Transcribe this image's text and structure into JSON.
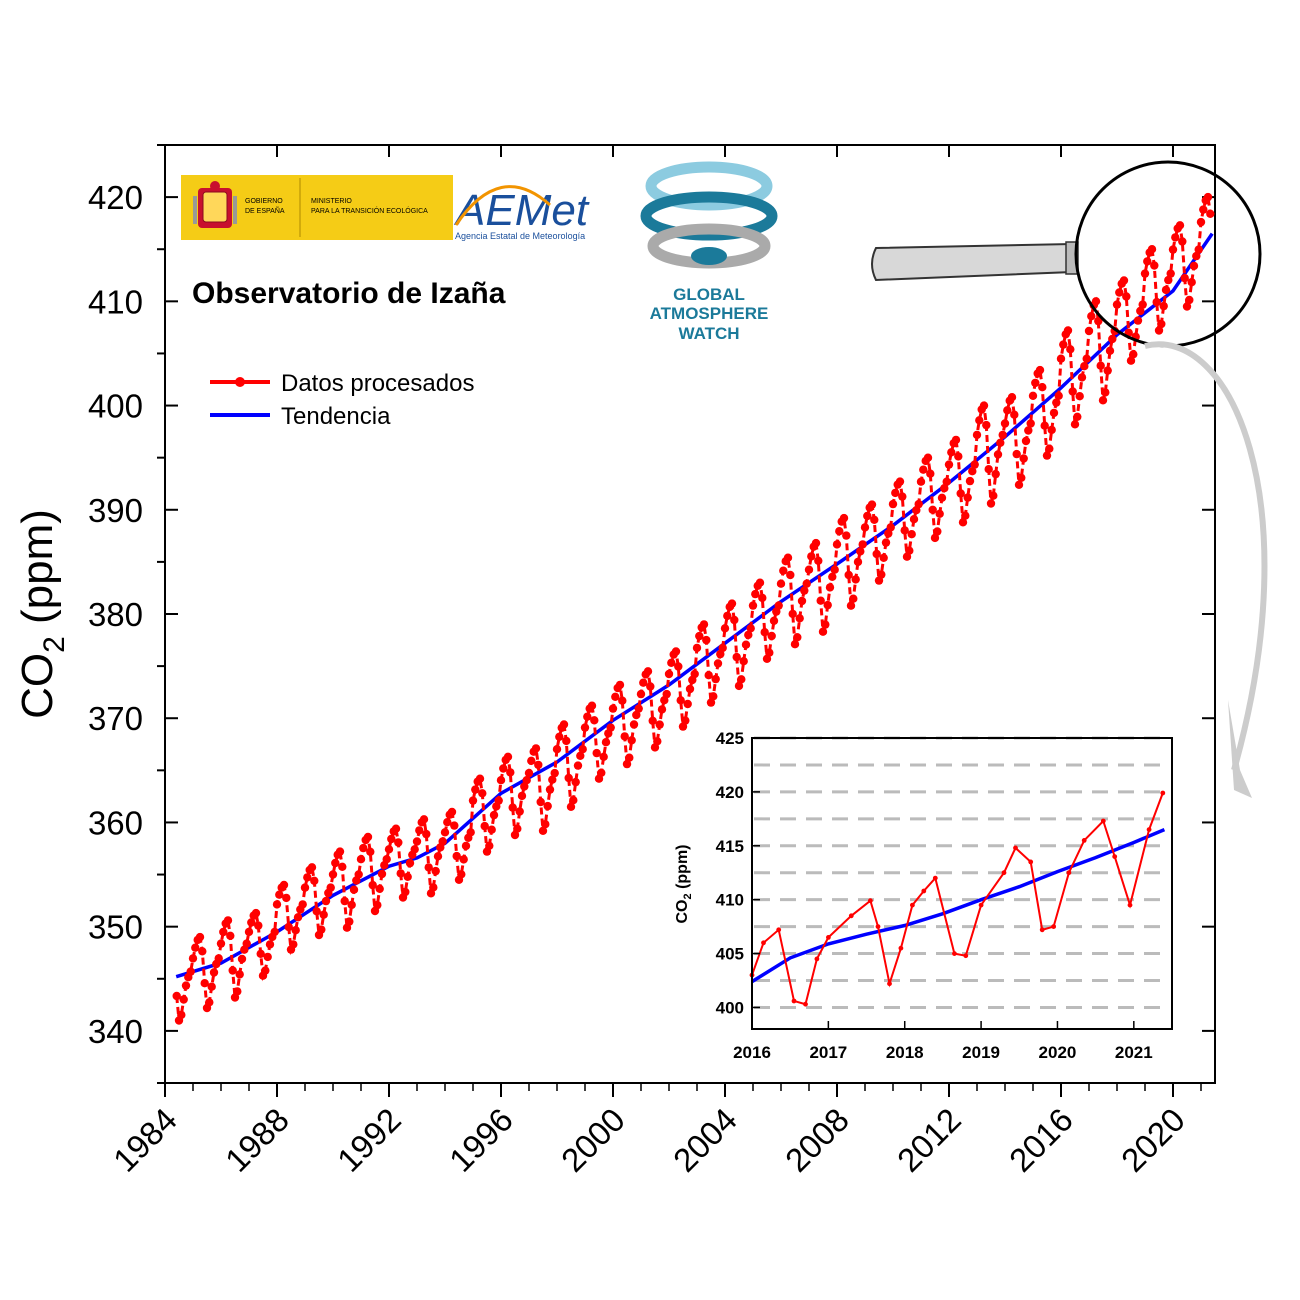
{
  "colors": {
    "processed": "#ff0000",
    "trend": "#0000ff",
    "axis": "#000000",
    "grid_inset": "#bbbbbb",
    "spain_gold": "#f5cc16",
    "aemet_blue": "#1a4f9c",
    "aemet_orange": "#f29400",
    "gaw_teal": "#1b7a9a",
    "gaw_light": "#8ccbe0"
  },
  "logos": {
    "spain": {
      "gobierno": [
        "GOBIERNO",
        "DE ESPAÑA"
      ],
      "ministerio": [
        "MINISTERIO",
        "PARA LA TRANSICIÓN ECOLÓGICA"
      ]
    },
    "aemet": {
      "name": "AEMet",
      "subtitle": "Agencia Estatal de Meteorología"
    },
    "gaw": {
      "lines": [
        "GLOBAL",
        "ATMOSPHERE",
        "WATCH"
      ]
    }
  },
  "chart_data": [
    {
      "type": "line",
      "title": "Observatorio de Izaña",
      "ylabel_main": "CO",
      "ylabel_sub": "2",
      "ylabel_unit": "(ppm)",
      "xlim": [
        1984,
        2021.5
      ],
      "ylim": [
        335,
        425
      ],
      "x_ticks": [
        1984,
        1988,
        1992,
        1996,
        2000,
        2004,
        2008,
        2012,
        2016,
        2020
      ],
      "y_ticks": [
        340,
        350,
        360,
        370,
        380,
        390,
        400,
        410,
        420
      ],
      "legend_position": "top-left",
      "grid": false,
      "series": [
        {
          "name": "Datos procesados",
          "kind": "monthly-seasonal",
          "x_start": 1984.375,
          "x_end": 2021.375,
          "annual_max": [
            347.7,
            349,
            350.6,
            351.3,
            354,
            355.7,
            357.2,
            358.6,
            359.4,
            360.3,
            361,
            364.2,
            366.3,
            367.1,
            369.4,
            371.2,
            373.2,
            374.5,
            376.4,
            379,
            381,
            383,
            385.4,
            386.8,
            389.2,
            390.5,
            392.7,
            395,
            396.7,
            400,
            400.8,
            403.4,
            407.2,
            410,
            412,
            415,
            417.3,
            420
          ],
          "annual_min": [
            341,
            342.2,
            343.2,
            345.3,
            347.8,
            349.2,
            349.9,
            351.5,
            352.8,
            353.2,
            354.5,
            357.2,
            358.8,
            359.2,
            361.5,
            364.2,
            365.6,
            367.2,
            369.2,
            371.5,
            373.1,
            375.7,
            377.1,
            378.3,
            380.8,
            383.2,
            385.5,
            387.3,
            388.8,
            390.6,
            392.4,
            395.2,
            398.2,
            400.5,
            404.3,
            407.2,
            409.5,
            412
          ]
        },
        {
          "name": "Tendencia",
          "x": [
            1984.4,
            1986,
            1988,
            1990,
            1992,
            1993,
            1994,
            1996,
            1998,
            2000,
            2002,
            2004,
            2006,
            2008,
            2010,
            2012,
            2014,
            2016,
            2018,
            2020,
            2021.4
          ],
          "y": [
            345.2,
            346.5,
            349.5,
            353.0,
            355.8,
            356.6,
            358.0,
            362.8,
            365.8,
            369.8,
            373.2,
            377.2,
            381.2,
            384.8,
            388.5,
            392.6,
            397.0,
            401.7,
            406.8,
            411.0,
            416.5
          ]
        }
      ]
    },
    {
      "type": "line",
      "title": "",
      "ylabel_main": "CO",
      "ylabel_sub": "2",
      "ylabel_unit": "(ppm)",
      "xlim": [
        2016,
        2021.5
      ],
      "ylim": [
        398,
        425
      ],
      "x_ticks": [
        2016,
        2017,
        2018,
        2019,
        2020,
        2021
      ],
      "y_ticks": [
        400,
        405,
        410,
        415,
        420,
        425
      ],
      "grid": true,
      "series": [
        {
          "name": "Datos procesados",
          "x": [
            2016.0,
            2016.15,
            2016.35,
            2016.55,
            2016.7,
            2016.85,
            2017.0,
            2017.3,
            2017.55,
            2017.65,
            2017.8,
            2017.95,
            2018.1,
            2018.25,
            2018.4,
            2018.65,
            2018.8,
            2019.0,
            2019.3,
            2019.45,
            2019.65,
            2019.8,
            2019.95,
            2020.15,
            2020.35,
            2020.6,
            2020.75,
            2020.95,
            2021.2,
            2021.38
          ],
          "y": [
            403.0,
            406.0,
            407.2,
            400.6,
            400.3,
            404.5,
            406.5,
            408.5,
            409.9,
            407.5,
            402.2,
            405.5,
            409.5,
            410.8,
            412.0,
            405.0,
            404.8,
            409.5,
            412.5,
            414.8,
            413.5,
            407.2,
            407.5,
            412.5,
            415.5,
            417.3,
            414.0,
            409.5,
            416.5,
            419.9
          ]
        },
        {
          "name": "Tendencia",
          "x": [
            2016.0,
            2016.5,
            2017.0,
            2017.5,
            2018.0,
            2018.5,
            2019.0,
            2019.5,
            2020.0,
            2020.5,
            2021.0,
            2021.4
          ],
          "y": [
            402.4,
            404.6,
            405.9,
            406.8,
            407.6,
            408.7,
            410.0,
            411.2,
            412.6,
            413.9,
            415.3,
            416.5
          ]
        }
      ]
    }
  ]
}
